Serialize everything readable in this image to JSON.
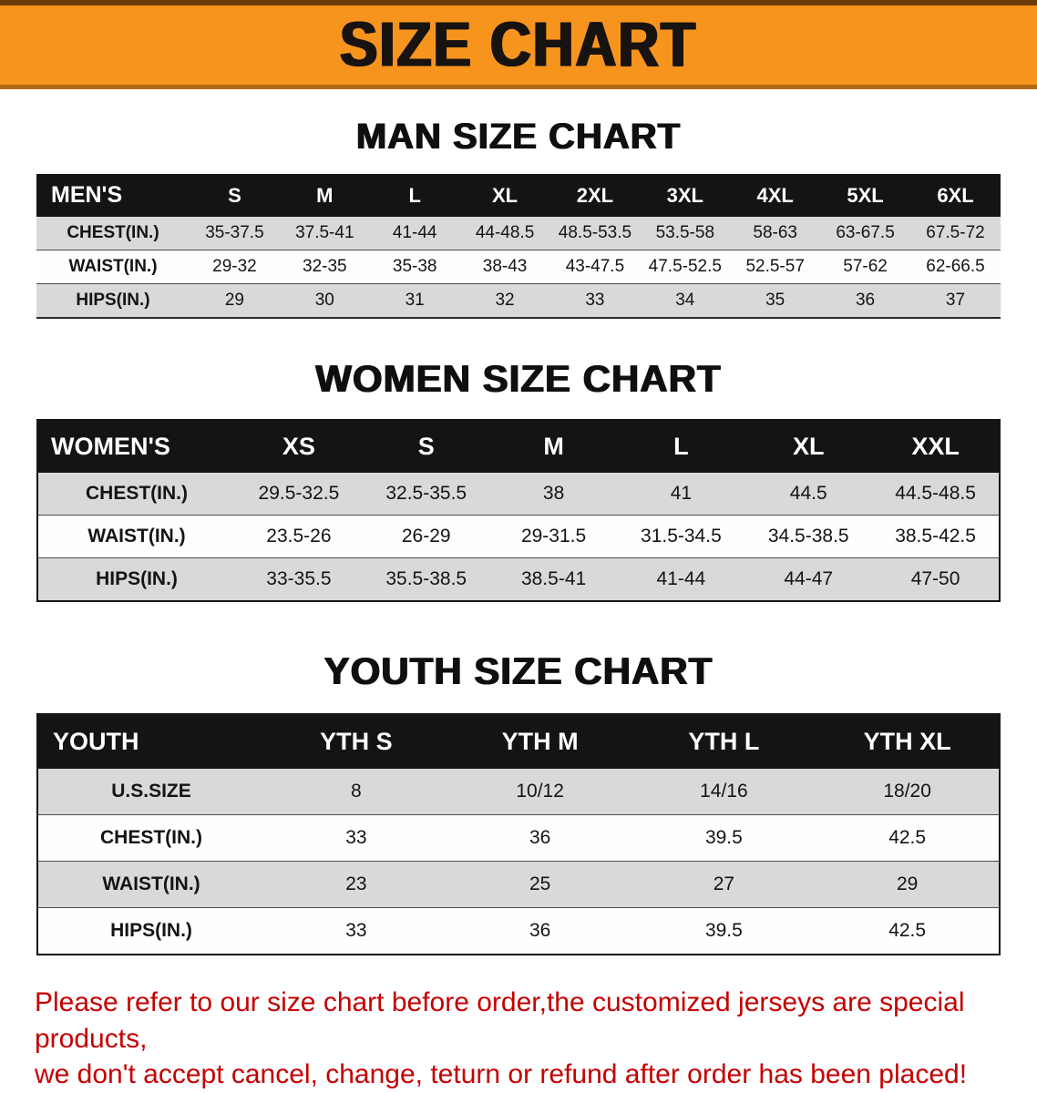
{
  "banner": {
    "title": "SIZE CHART"
  },
  "chart_data": [
    {
      "type": "table",
      "title": "MAN SIZE CHART",
      "header": [
        "MEN'S",
        "S",
        "M",
        "L",
        "XL",
        "2XL",
        "3XL",
        "4XL",
        "5XL",
        "6XL"
      ],
      "rows": [
        [
          "CHEST(IN.)",
          "35-37.5",
          "37.5-41",
          "41-44",
          "44-48.5",
          "48.5-53.5",
          "53.5-58",
          "58-63",
          "63-67.5",
          "67.5-72"
        ],
        [
          "WAIST(IN.)",
          "29-32",
          "32-35",
          "35-38",
          "38-43",
          "43-47.5",
          "47.5-52.5",
          "52.5-57",
          "57-62",
          "62-66.5"
        ],
        [
          "HIPS(IN.)",
          "29",
          "30",
          "31",
          "32",
          "33",
          "34",
          "35",
          "36",
          "37"
        ]
      ]
    },
    {
      "type": "table",
      "title": "WOMEN SIZE CHART",
      "header": [
        "WOMEN'S",
        "XS",
        "S",
        "M",
        "L",
        "XL",
        "XXL"
      ],
      "rows": [
        [
          "CHEST(IN.)",
          "29.5-32.5",
          "32.5-35.5",
          "38",
          "41",
          "44.5",
          "44.5-48.5"
        ],
        [
          "WAIST(IN.)",
          "23.5-26",
          "26-29",
          "29-31.5",
          "31.5-34.5",
          "34.5-38.5",
          "38.5-42.5"
        ],
        [
          "HIPS(IN.)",
          "33-35.5",
          "35.5-38.5",
          "38.5-41",
          "41-44",
          "44-47",
          "47-50"
        ]
      ]
    },
    {
      "type": "table",
      "title": "YOUTH SIZE CHART",
      "header": [
        "YOUTH",
        "YTH S",
        "YTH M",
        "YTH L",
        "YTH XL"
      ],
      "rows": [
        [
          "U.S.SIZE",
          "8",
          "10/12",
          "14/16",
          "18/20"
        ],
        [
          "CHEST(IN.)",
          "33",
          "36",
          "39.5",
          "42.5"
        ],
        [
          "WAIST(IN.)",
          "23",
          "25",
          "27",
          "29"
        ],
        [
          "HIPS(IN.)",
          "33",
          "36",
          "39.5",
          "42.5"
        ]
      ]
    }
  ],
  "footer": {
    "line1": "Please refer to our size chart before order,the customized jerseys are special products,",
    "line2": "we don't accept cancel, change, teturn or refund after order has been placed!"
  },
  "colors": {
    "banner_bg": "#f7941e",
    "table_header_bg": "#141414",
    "row_stripe": "#d9d9d9",
    "note_red": "#c40000"
  }
}
